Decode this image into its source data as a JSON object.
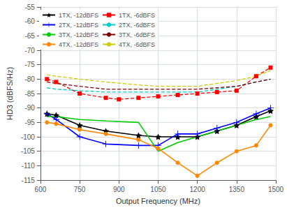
{
  "chart_data": {
    "type": "line",
    "xlabel": "Output Frequency (MHz)",
    "ylabel": "HD3 (dBFS/Hz)",
    "xlim": [
      600,
      1500
    ],
    "ylim": [
      -115,
      -55
    ],
    "xticks": [
      600,
      750,
      900,
      1050,
      1200,
      1350,
      1500
    ],
    "yticks": [
      -115,
      -110,
      -105,
      -100,
      -95,
      -90,
      -85,
      -80,
      -75,
      -70,
      -65,
      -60,
      -55
    ],
    "grid": true,
    "legend": "upper left",
    "series": [
      {
        "name": "1TX, -12dBFS",
        "color": "#000000",
        "line_style": "solid",
        "marker": "star",
        "x": [
          625,
          660,
          750,
          850,
          975,
          1050,
          1125,
          1200,
          1275,
          1350,
          1425,
          1480
        ],
        "values": [
          -92,
          -92.5,
          -96,
          -98,
          -99.5,
          -100,
          -100,
          -100,
          -98,
          -96,
          -93,
          -91
        ]
      },
      {
        "name": "1TX, -6dBFS",
        "color": "#ff0000",
        "line_style": "dashed",
        "marker": "square",
        "x": [
          625,
          660,
          750,
          850,
          900,
          975,
          1050,
          1125,
          1200,
          1275,
          1350,
          1425,
          1480
        ],
        "values": [
          -80,
          -81,
          -85,
          -86.5,
          -87,
          -86.5,
          -86,
          -85.5,
          -85,
          -84.5,
          -84,
          -79,
          -76
        ]
      },
      {
        "name": "2TX, -12dBFS",
        "color": "#0000ff",
        "line_style": "solid",
        "marker": "plus",
        "x": [
          625,
          660,
          750,
          850,
          975,
          1050,
          1125,
          1200,
          1275,
          1350,
          1425,
          1480
        ],
        "values": [
          -92,
          -94,
          -100,
          -102.5,
          -103,
          -103,
          -99,
          -99,
          -97,
          -95,
          -92,
          -90
        ]
      },
      {
        "name": "2TX, -6dBFS",
        "color": "#00cccc",
        "line_style": "dashed",
        "marker": "none",
        "x": [
          625,
          660,
          750,
          850,
          975,
          1050,
          1125,
          1200,
          1275,
          1350,
          1425,
          1480
        ],
        "values": [
          -83,
          -83.5,
          -84,
          -84.5,
          -84.5,
          -84.5,
          -84.5,
          -84.5,
          -83.5,
          -82.5,
          -81,
          -80
        ]
      },
      {
        "name": "3TX, -12dBFS",
        "color": "#00cc00",
        "line_style": "solid",
        "marker": "none",
        "x": [
          625,
          660,
          750,
          850,
          975,
          1050,
          1125,
          1200,
          1275,
          1350,
          1425,
          1480
        ],
        "values": [
          -93,
          -93,
          -94,
          -94.5,
          -95,
          -105,
          -102,
          -100,
          -98,
          -96,
          -94,
          -93
        ]
      },
      {
        "name": "3TX, -6dBFS",
        "color": "#800000",
        "line_style": "dashed",
        "marker": "none",
        "x": [
          625,
          660,
          750,
          850,
          975,
          1050,
          1125,
          1200,
          1275,
          1350,
          1425,
          1480
        ],
        "values": [
          -81,
          -81.5,
          -82.5,
          -83.5,
          -83.5,
          -83.5,
          -83.5,
          -83.5,
          -83,
          -82.5,
          -81,
          -80
        ]
      },
      {
        "name": "4TX, -12dBFS",
        "color": "#ff8800",
        "line_style": "solid",
        "marker": "circle",
        "x": [
          625,
          660,
          750,
          850,
          975,
          1050,
          1125,
          1200,
          1275,
          1350,
          1425,
          1480
        ],
        "values": [
          -95,
          -95.5,
          -97.5,
          -99,
          -101,
          -104,
          -109,
          -113.5,
          -109,
          -105,
          -103,
          -96
        ]
      },
      {
        "name": "4TX, -6dBFS",
        "color": "#cccc00",
        "line_style": "dashed",
        "marker": "none",
        "x": [
          625,
          660,
          750,
          850,
          975,
          1050,
          1125,
          1200,
          1275,
          1350,
          1425,
          1480
        ],
        "values": [
          -78.5,
          -79,
          -80,
          -81,
          -82,
          -82.5,
          -82.5,
          -82.5,
          -81.5,
          -80.5,
          -79,
          -77
        ]
      }
    ]
  }
}
